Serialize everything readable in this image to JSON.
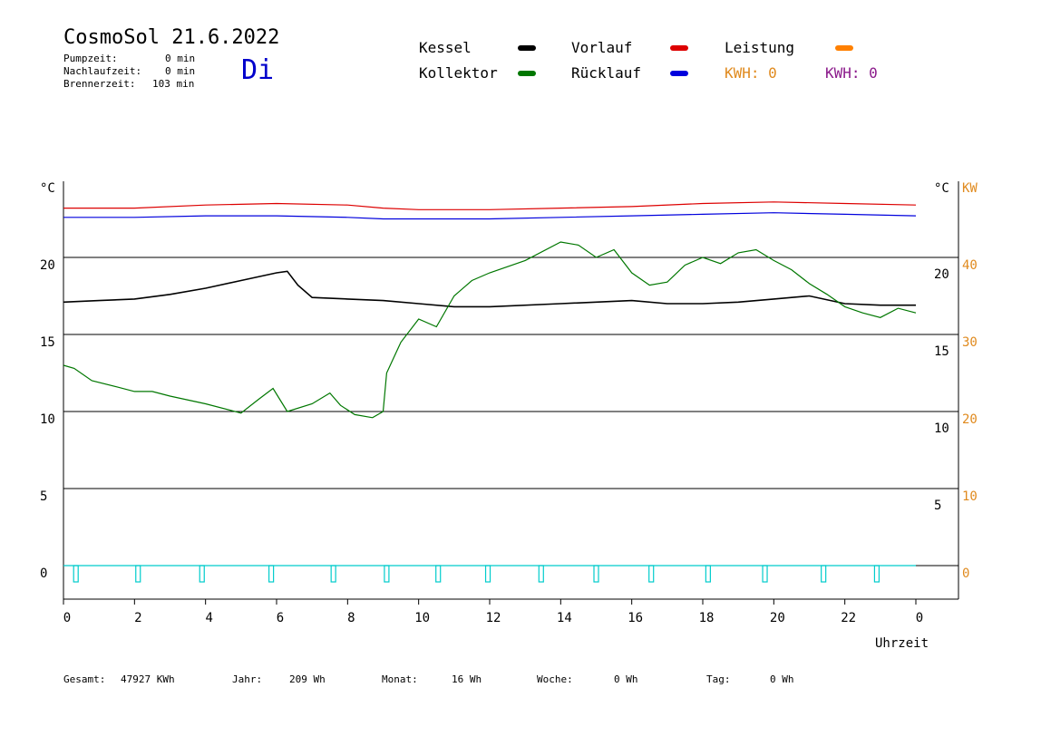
{
  "header": {
    "title": "CosmoSol 21.6.2022",
    "day": "Di",
    "stats": [
      {
        "label": "Pumpzeit:",
        "value": "0 min"
      },
      {
        "label": "Nachlaufzeit:",
        "value": "0 min"
      },
      {
        "label": "Brennerzeit:",
        "value": "103 min"
      }
    ]
  },
  "legend": {
    "kessel": {
      "label": "Kessel",
      "color": "#000000"
    },
    "kollektor": {
      "label": "Kollektor",
      "color": "#007700"
    },
    "vorlauf": {
      "label": "Vorlauf",
      "color": "#dd0000"
    },
    "ruecklauf": {
      "label": "Rücklauf",
      "color": "#0000dd"
    },
    "leistung": {
      "label": "Leistung",
      "color": "#ff8000"
    },
    "kwh1": {
      "label": "KWH: 0",
      "color": "#e08a1e"
    },
    "kwh2": {
      "label": "KWH: 0",
      "color": "#8b1a8b"
    }
  },
  "footer": {
    "gesamt_label": "Gesamt:",
    "gesamt_value": "47927 KWh",
    "jahr_label": "Jahr:",
    "jahr_value": "209 Wh",
    "monat_label": "Monat:",
    "monat_value": "16 Wh",
    "woche_label": "Woche:",
    "woche_value": "0 Wh",
    "tag_label": "Tag:",
    "tag_value": "0 Wh"
  },
  "chart_data": {
    "type": "line",
    "left_axis_unit": "°C",
    "right_axis_unit": "°C",
    "right_axis2_unit": "KW",
    "xlabel": "Uhrzeit",
    "xlim": [
      0,
      24
    ],
    "ylim": [
      -1.5,
      24
    ],
    "x_ticks": [
      "0",
      "2",
      "4",
      "6",
      "8",
      "10",
      "12",
      "14",
      "16",
      "18",
      "20",
      "22",
      "0"
    ],
    "y_left_ticks": [
      0,
      5,
      10,
      15,
      20
    ],
    "y_right_ticks": [
      5,
      10,
      15,
      20
    ],
    "y_kw_ticks": [
      0,
      10,
      20,
      30,
      40
    ],
    "gridlines": [
      0,
      5,
      10,
      15,
      20
    ],
    "series": [
      {
        "name": "Vorlauf",
        "color": "#dd0000",
        "x": [
          0,
          2,
          4,
          6,
          8,
          9,
          10,
          12,
          14,
          16,
          18,
          20,
          22,
          24
        ],
        "y": [
          23.2,
          23.2,
          23.4,
          23.5,
          23.4,
          23.2,
          23.1,
          23.1,
          23.2,
          23.3,
          23.5,
          23.6,
          23.5,
          23.4
        ]
      },
      {
        "name": "Rücklauf",
        "color": "#0000dd",
        "x": [
          0,
          2,
          4,
          6,
          8,
          9,
          10,
          12,
          14,
          16,
          18,
          20,
          22,
          24
        ],
        "y": [
          22.6,
          22.6,
          22.7,
          22.7,
          22.6,
          22.5,
          22.5,
          22.5,
          22.6,
          22.7,
          22.8,
          22.9,
          22.8,
          22.7
        ]
      },
      {
        "name": "Kessel",
        "color": "#000000",
        "x": [
          0,
          1,
          2,
          3,
          4,
          5,
          6,
          6.3,
          6.6,
          7,
          8,
          9,
          10,
          11,
          12,
          14,
          16,
          17,
          18,
          19,
          20,
          21,
          22,
          23,
          24
        ],
        "y": [
          17.1,
          17.2,
          17.3,
          17.6,
          18.0,
          18.5,
          19.0,
          19.1,
          18.2,
          17.4,
          17.3,
          17.2,
          17.0,
          16.8,
          16.8,
          17.0,
          17.2,
          17.0,
          17.0,
          17.1,
          17.3,
          17.5,
          17.0,
          16.9,
          16.9
        ]
      },
      {
        "name": "Kollektor",
        "color": "#007700",
        "x": [
          0,
          0.3,
          0.8,
          1.5,
          2,
          2.5,
          3,
          4,
          5,
          5.5,
          5.9,
          6.3,
          7,
          7.5,
          7.8,
          8.2,
          8.7,
          9.0,
          9.1,
          9.5,
          10,
          10.5,
          11,
          11.5,
          12,
          13,
          14,
          14.5,
          15,
          15.5,
          16,
          16.5,
          17,
          17.5,
          18,
          18.5,
          19,
          19.5,
          20,
          20.5,
          21,
          21.5,
          22,
          22.5,
          23,
          23.5,
          24
        ],
        "y": [
          13.0,
          12.8,
          12.0,
          11.6,
          11.3,
          11.3,
          11.0,
          10.5,
          9.9,
          10.8,
          11.5,
          10.0,
          10.5,
          11.2,
          10.4,
          9.8,
          9.6,
          10.0,
          12.5,
          14.5,
          16.0,
          15.5,
          17.5,
          18.5,
          19.0,
          19.8,
          21.0,
          20.8,
          20.0,
          20.5,
          19.0,
          18.2,
          18.4,
          19.5,
          20.0,
          19.6,
          20.3,
          20.5,
          19.8,
          19.2,
          18.3,
          17.6,
          16.8,
          16.4,
          16.1,
          16.7,
          16.4
        ]
      }
    ],
    "pump_markers_x": [
      0.35,
      2.1,
      3.9,
      5.85,
      7.6,
      9.1,
      10.55,
      11.95,
      13.45,
      15.0,
      16.55,
      18.15,
      19.75,
      21.4,
      22.9
    ]
  }
}
